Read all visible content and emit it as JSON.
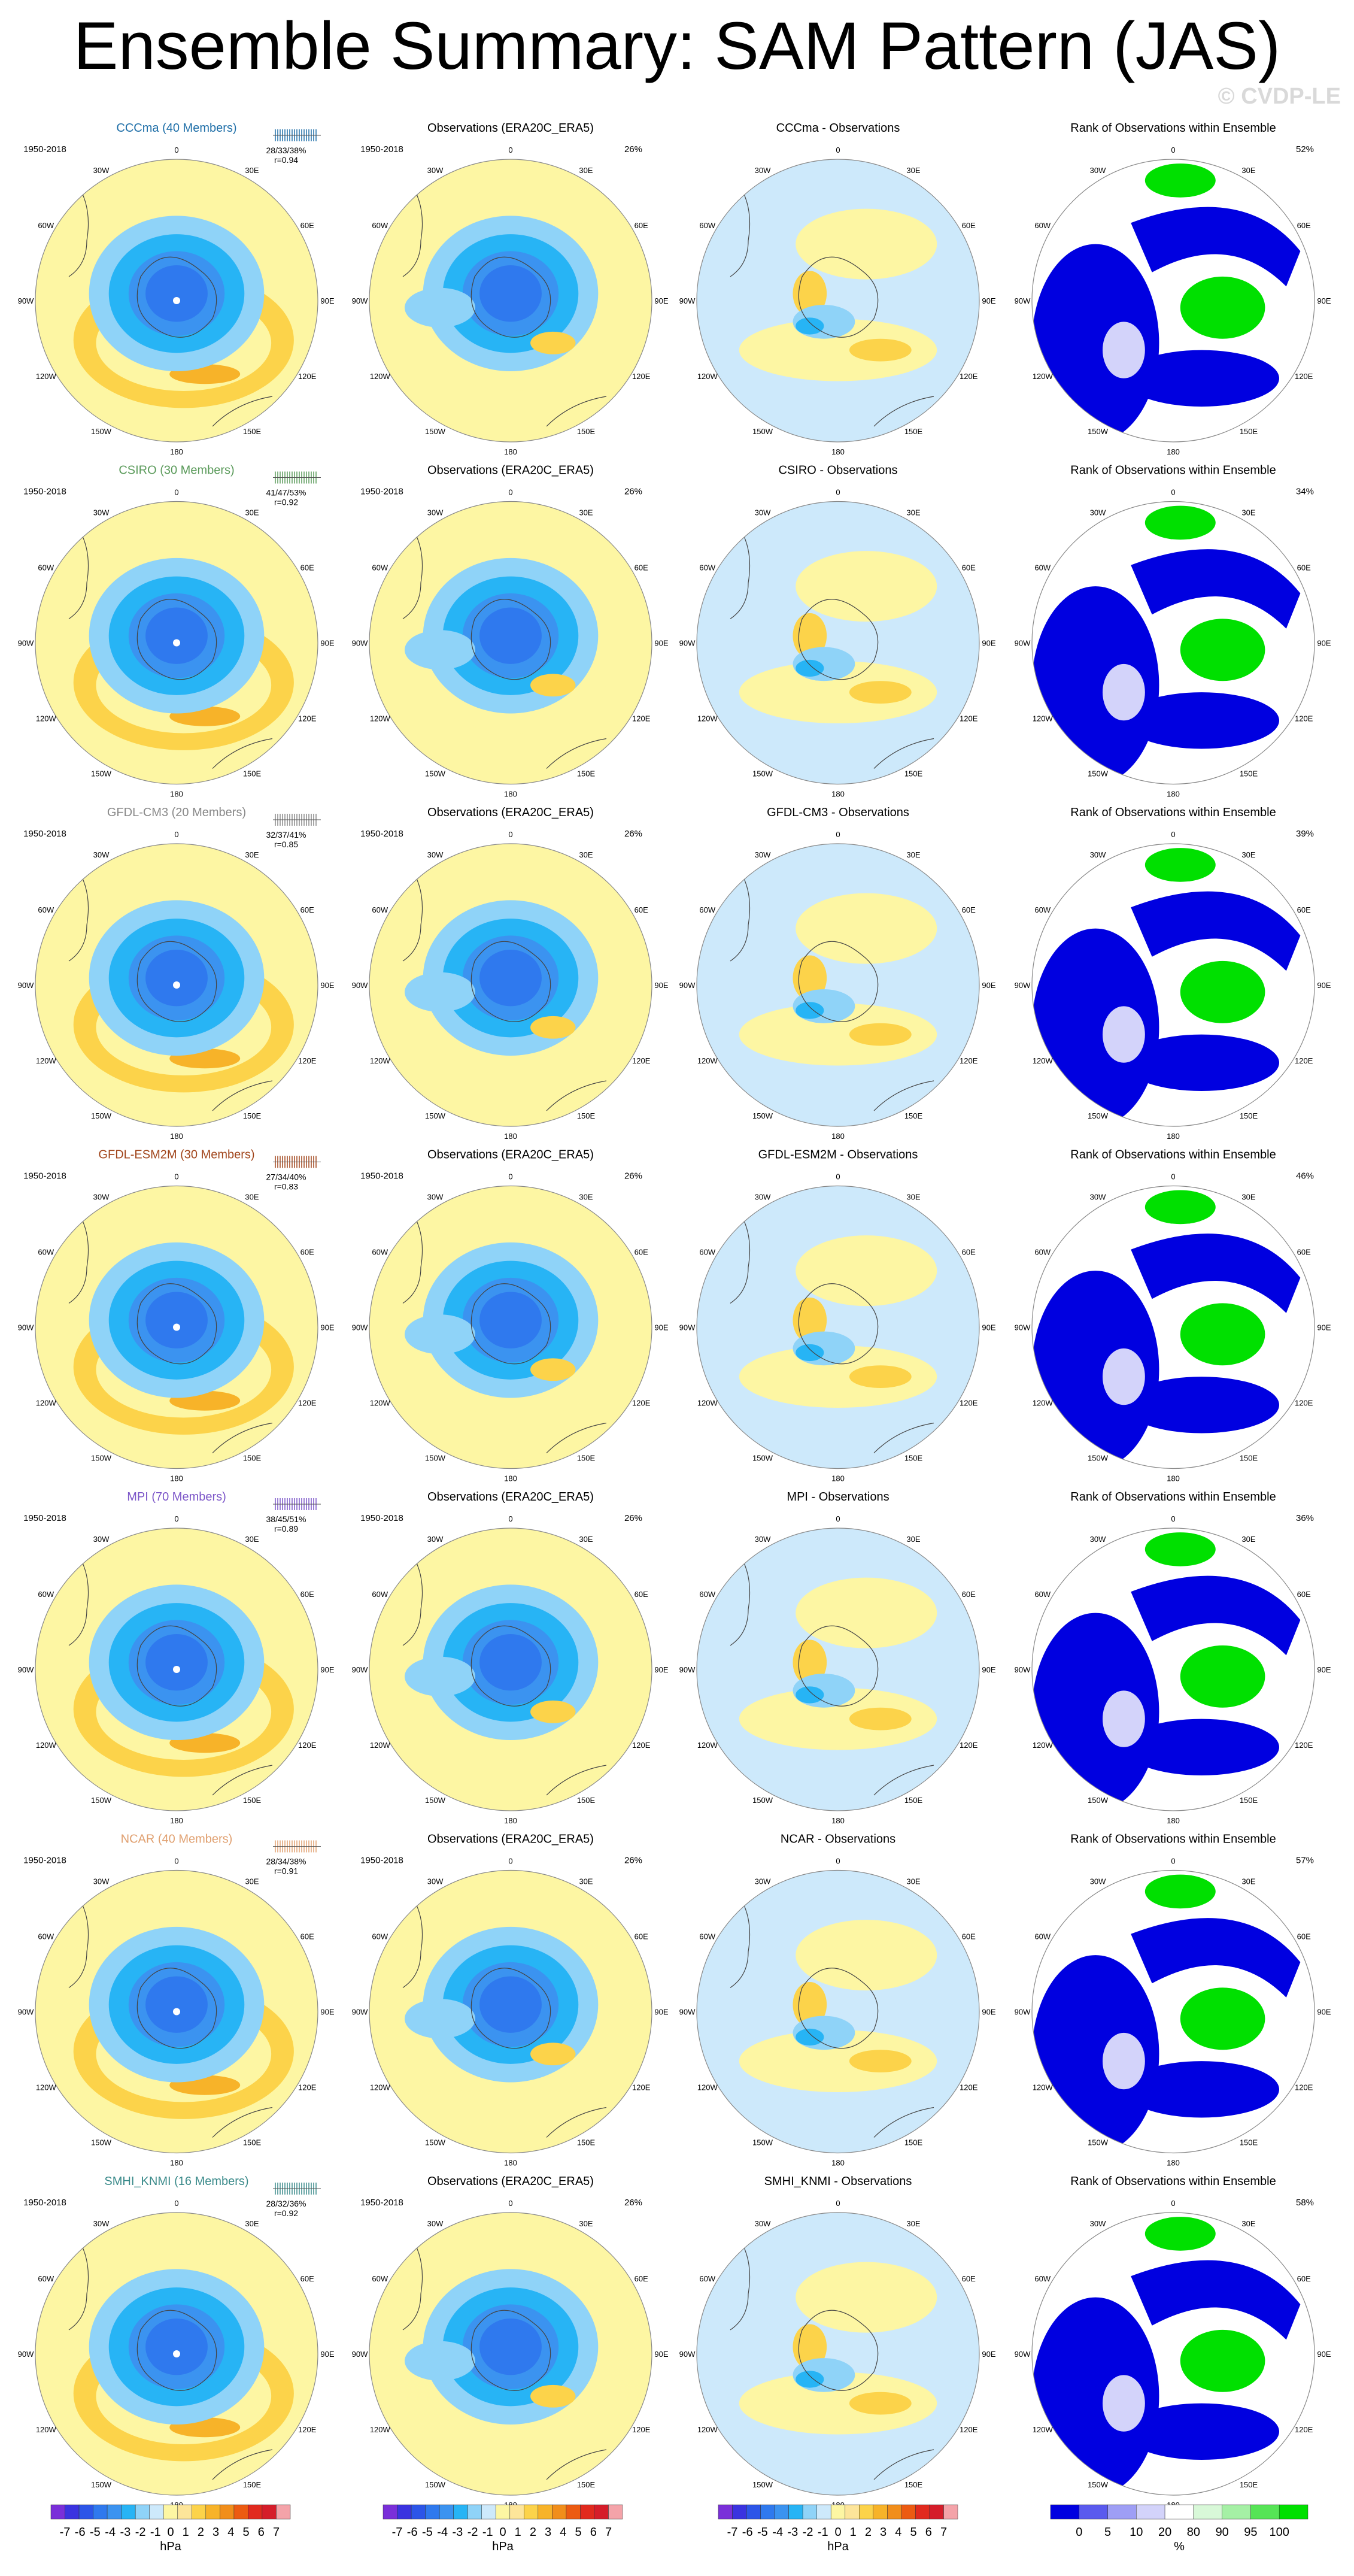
{
  "page": {
    "title": "Ensemble Summary: SAM Pattern (JAS)",
    "watermark": "© CVDP-LE"
  },
  "chart_data": {
    "type": "heatmap",
    "description_grid": "4 columns x 7 rows of south-polar stereographic maps",
    "common": {
      "period": "1950-2018",
      "obs_title": "Observations (ERA20C_ERA5)",
      "obs_pct": "26%",
      "rank_title": "Rank of Observations within Ensemble",
      "lon_labels": [
        "0",
        "30E",
        "60E",
        "90E",
        "120E",
        "150E",
        "180",
        "150W",
        "120W",
        "90W",
        "60W",
        "30W"
      ]
    },
    "rows": [
      {
        "model": "CCCma",
        "label": "CCCma (40 Members)",
        "color": "#1f6fa8",
        "stats": "28/33/38%",
        "r": "r=0.94",
        "diff_title": "CCCma - Observations",
        "rank_pct": "52%"
      },
      {
        "model": "CSIRO",
        "label": "CSIRO (30 Members)",
        "color": "#5a9a5a",
        "stats": "41/47/53%",
        "r": "r=0.92",
        "diff_title": "CSIRO - Observations",
        "rank_pct": "34%"
      },
      {
        "model": "GFDL-CM3",
        "label": "GFDL-CM3 (20 Members)",
        "color": "#888888",
        "stats": "32/37/41%",
        "r": "r=0.85",
        "diff_title": "GFDL-CM3 - Observations",
        "rank_pct": "39%"
      },
      {
        "model": "GFDL-ESM2M",
        "label": "GFDL-ESM2M (30 Members)",
        "color": "#a0441a",
        "stats": "27/34/40%",
        "r": "r=0.83",
        "diff_title": "GFDL-ESM2M - Observations",
        "rank_pct": "46%"
      },
      {
        "model": "MPI",
        "label": "MPI (70 Members)",
        "color": "#7b55c8",
        "stats": "38/45/51%",
        "r": "r=0.89",
        "diff_title": "MPI - Observations",
        "rank_pct": "36%"
      },
      {
        "model": "NCAR",
        "label": "NCAR (40 Members)",
        "color": "#e0a070",
        "stats": "28/34/38%",
        "r": "r=0.91",
        "diff_title": "NCAR - Observations",
        "rank_pct": "57%"
      },
      {
        "model": "SMHI_KNMI",
        "label": "SMHI_KNMI (16 Members)",
        "color": "#3a8a8a",
        "stats": "28/32/36%",
        "r": "r=0.92",
        "diff_title": "SMHI_KNMI - Observations",
        "rank_pct": "58%"
      }
    ],
    "colorbars": {
      "hpa": {
        "unit": "hPa",
        "ticks": [
          "-7",
          "-6",
          "-5",
          "-4",
          "-3",
          "-2",
          "-1",
          "0",
          "1",
          "2",
          "3",
          "4",
          "5",
          "6",
          "7"
        ],
        "colors": [
          "#7a2fd9",
          "#3a33e0",
          "#2c55e8",
          "#2f79ee",
          "#3b93f0",
          "#27b4f5",
          "#8fd3f8",
          "#cde9fb",
          "#fdf6a3",
          "#fde59a",
          "#fcd34a",
          "#f7b329",
          "#f18e1b",
          "#ec5b12",
          "#e12a1e",
          "#d51d2a",
          "#f4a3a9"
        ]
      },
      "rank": {
        "unit": "%",
        "ticks": [
          "0",
          "5",
          "10",
          "20",
          "80",
          "90",
          "95",
          "100"
        ],
        "colors": [
          "#0000e0",
          "#5a5aee",
          "#9e9ef5",
          "#d3d3fa",
          "#ffffff",
          "#d8f8d8",
          "#a5f0a5",
          "#56e456",
          "#00e000"
        ]
      }
    }
  }
}
